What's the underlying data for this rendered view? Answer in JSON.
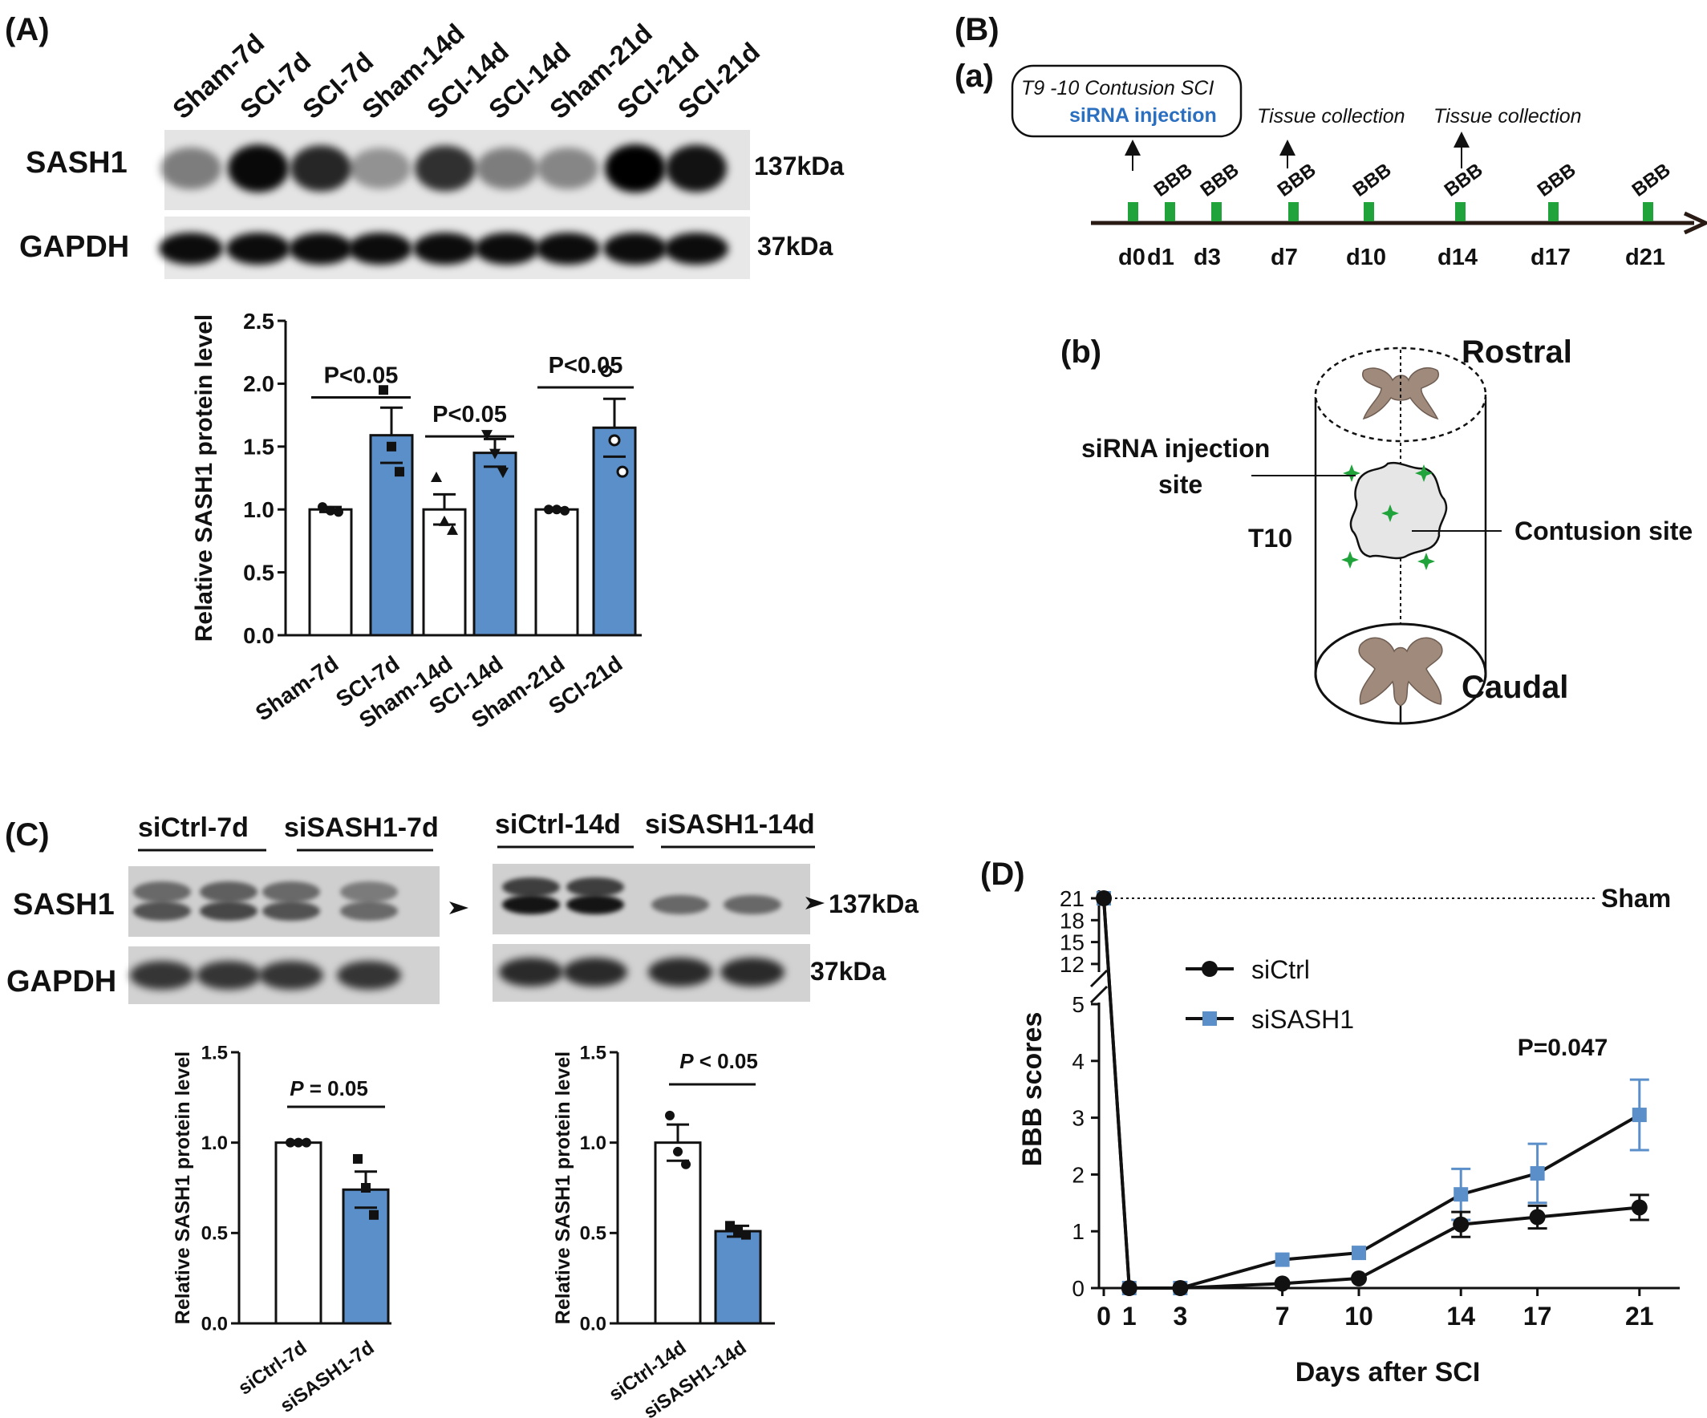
{
  "panel_labels": {
    "A": "(A)",
    "B": "(B)",
    "a": "(a)",
    "b": "(b)",
    "C": "(C)",
    "D": "(D)"
  },
  "colors": {
    "bar_fill": "#5b8fc9",
    "si_ctrl_line": "#111111",
    "si_sash1_line": "#5b8fc9",
    "marker_green": "#1fa33a",
    "gray_matter": "#a08a7c"
  },
  "panelA": {
    "lanes": [
      "Sham-7d",
      "SCI-7d",
      "SCI-7d",
      "Sham-14d",
      "SCI-14d",
      "SCI-14d",
      "Sham-21d",
      "SCI-21d",
      "SCI-21d"
    ],
    "row_labels": [
      "SASH1",
      "GAPDH"
    ],
    "kda": [
      "137kDa",
      "37kDa"
    ],
    "sash1_band": [
      0.35,
      0.95,
      0.8,
      0.25,
      0.75,
      0.35,
      0.3,
      1.0,
      0.9
    ]
  },
  "panelB": {
    "a": {
      "box_line1": "T9 -10 Contusion SCI",
      "box_line2": "siRNA injection",
      "collect1": "Tissue collection",
      "collect2": "Tissue collection",
      "days": [
        "d0",
        "d1",
        "d3",
        "d7",
        "d10",
        "d14",
        "d17",
        "d21"
      ],
      "bbb": [
        "BBB",
        "BBB",
        "BBB",
        "BBB",
        "BBB",
        "BBB",
        "BBB"
      ]
    },
    "b": {
      "rostral": "Rostral",
      "caudal": "Caudal",
      "inj1": "siRNA injection",
      "inj2": "site",
      "t10": "T10",
      "contusion": "Contusion site"
    }
  },
  "panelC": {
    "blot_left_groups": [
      "siCtrl-7d",
      "siSASH1-7d"
    ],
    "blot_right_groups": [
      "siCtrl-14d",
      "siSASH1-14d"
    ],
    "row_labels": [
      "SASH1",
      "GAPDH"
    ],
    "kda": [
      "137kDa",
      "37kDa"
    ],
    "sash1_left": [
      0.55,
      0.6,
      0.55,
      0.45
    ],
    "sash1_right": [
      0.7,
      0.7,
      0.3,
      0.3
    ]
  },
  "chart_data": [
    {
      "type": "bar",
      "panel": "A",
      "categories": [
        "Sham-7d",
        "SCI-7d",
        "Sham-14d",
        "SCI-14d",
        "Sham-21d",
        "SCI-21d"
      ],
      "values": [
        1.0,
        1.59,
        1.0,
        1.45,
        1.0,
        1.65
      ],
      "errors": [
        0.02,
        0.22,
        0.12,
        0.11,
        0.01,
        0.23
      ],
      "filled": [
        false,
        true,
        false,
        true,
        false,
        true
      ],
      "points": [
        [
          1.02,
          0.99,
          0.98
        ],
        [
          1.95,
          1.5,
          1.3
        ],
        [
          1.25,
          0.9,
          0.83
        ],
        [
          1.6,
          1.45,
          1.3
        ],
        [
          1.0,
          1.0,
          0.99
        ],
        [
          2.1,
          1.55,
          1.3
        ]
      ],
      "ylabel": "Relative SASH1 protein level",
      "ylim": [
        0,
        2.5
      ],
      "yticks": [
        "0.0",
        "0.5",
        "1.0",
        "1.5",
        "2.0",
        "2.5"
      ],
      "annotations": [
        "P<0.05",
        "P<0.05",
        "P<0.05"
      ]
    },
    {
      "type": "bar",
      "panel": "C-left",
      "categories": [
        "siCtrl-7d",
        "siSASH1-7d"
      ],
      "values": [
        1.0,
        0.74
      ],
      "errors": [
        0.01,
        0.1
      ],
      "filled": [
        false,
        true
      ],
      "points": [
        [
          1.0,
          1.0,
          1.0
        ],
        [
          0.91,
          0.75,
          0.6
        ]
      ],
      "ylabel": "Relative SASH1 protein level",
      "ylim": [
        0,
        1.5
      ],
      "yticks": [
        "0.0",
        "0.5",
        "1.0",
        "1.5"
      ],
      "annotation_p": "P",
      "annotation_rest": " = 0.05"
    },
    {
      "type": "bar",
      "panel": "C-right",
      "categories": [
        "siCtrl-14d",
        "siSASH1-14d"
      ],
      "values": [
        1.0,
        0.51
      ],
      "errors": [
        0.1,
        0.03
      ],
      "filled": [
        false,
        true
      ],
      "points": [
        [
          1.15,
          0.95,
          0.88
        ],
        [
          0.54,
          0.51,
          0.49
        ]
      ],
      "ylabel": "Relative SASH1 protein level",
      "ylim": [
        0,
        1.5
      ],
      "yticks": [
        "0.0",
        "0.5",
        "1.0",
        "1.5"
      ],
      "annotation_p": "P",
      "annotation_rest": " < 0.05"
    },
    {
      "type": "line",
      "panel": "D",
      "x": [
        0,
        1,
        3,
        7,
        10,
        14,
        17,
        21
      ],
      "xticks": [
        "0",
        "1",
        "3",
        "7",
        "10",
        "14",
        "17",
        "21"
      ],
      "series": [
        {
          "name": "siCtrl",
          "values": [
            21,
            0,
            0,
            0.08,
            0.17,
            1.12,
            1.25,
            1.42
          ],
          "errors": [
            0,
            0,
            0,
            0,
            0,
            0.22,
            0.2,
            0.22
          ]
        },
        {
          "name": "siSASH1",
          "values": [
            21,
            0,
            0,
            0.5,
            0.62,
            1.65,
            2.02,
            3.05
          ],
          "errors": [
            0,
            0,
            0,
            0,
            0,
            0.45,
            0.52,
            0.62
          ]
        }
      ],
      "ylabel": "BBB scores",
      "xlabel": "Days after SCI",
      "yticks_low": [
        "0",
        "1",
        "2",
        "3",
        "4",
        "5"
      ],
      "yticks_high": [
        "12",
        "15",
        "18",
        "21"
      ],
      "sham_label": "Sham",
      "annotation": "P=0.047"
    }
  ]
}
